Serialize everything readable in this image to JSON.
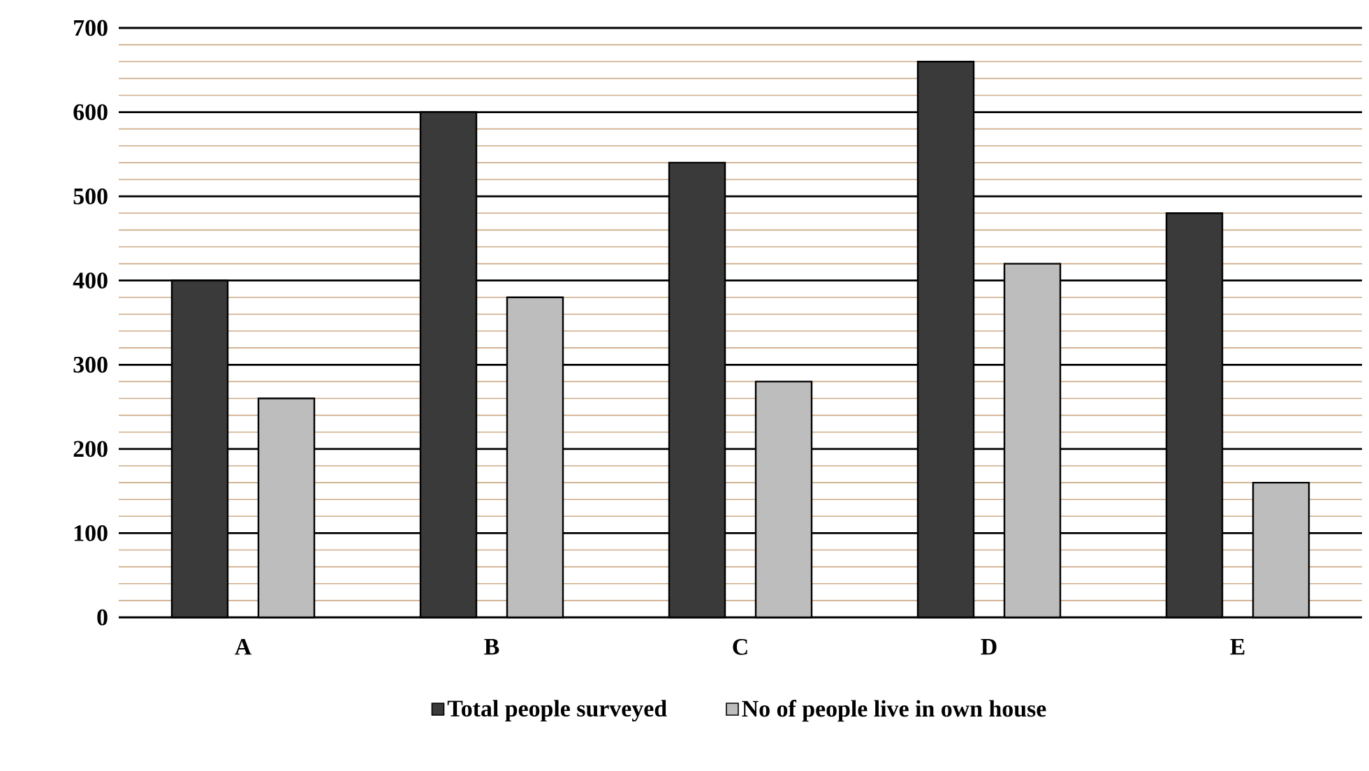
{
  "chart_data": {
    "type": "bar",
    "categories": [
      "A",
      "B",
      "C",
      "D",
      "E"
    ],
    "series": [
      {
        "name": "Total people surveyed",
        "color": "#3a3a3a",
        "values": [
          400,
          600,
          540,
          660,
          480
        ]
      },
      {
        "name": "No of people live in own house",
        "color": "#bdbdbd",
        "values": [
          260,
          380,
          280,
          420,
          160
        ]
      }
    ],
    "ylim": [
      0,
      700
    ],
    "yticks": [
      0,
      {
        "value": 20,
        "label": null
      },
      {
        "value": 40,
        "label": null
      },
      {
        "value": 60,
        "label": null
      },
      {
        "value": 80,
        "label": null
      },
      100,
      {
        "value": 120,
        "label": null
      },
      {
        "value": 140,
        "label": null
      },
      {
        "value": 160,
        "label": null
      },
      {
        "value": 180,
        "label": null
      },
      200,
      {
        "value": 220,
        "label": null
      },
      {
        "value": 240,
        "label": null
      },
      {
        "value": 260,
        "label": null
      },
      {
        "value": 280,
        "label": null
      },
      300,
      {
        "value": 320,
        "label": null
      },
      {
        "value": 340,
        "label": null
      },
      {
        "value": 360,
        "label": null
      },
      {
        "value": 380,
        "label": null
      },
      400,
      {
        "value": 420,
        "label": null
      },
      {
        "value": 440,
        "label": null
      },
      {
        "value": 460,
        "label": null
      },
      {
        "value": 480,
        "label": null
      },
      500,
      {
        "value": 520,
        "label": null
      },
      {
        "value": 540,
        "label": null
      },
      {
        "value": 560,
        "label": null
      },
      {
        "value": 580,
        "label": null
      },
      600,
      {
        "value": 620,
        "label": null
      },
      {
        "value": 640,
        "label": null
      },
      {
        "value": 660,
        "label": null
      },
      {
        "value": 680,
        "label": null
      },
      700
    ],
    "grid": "y",
    "legend": "bottom"
  }
}
